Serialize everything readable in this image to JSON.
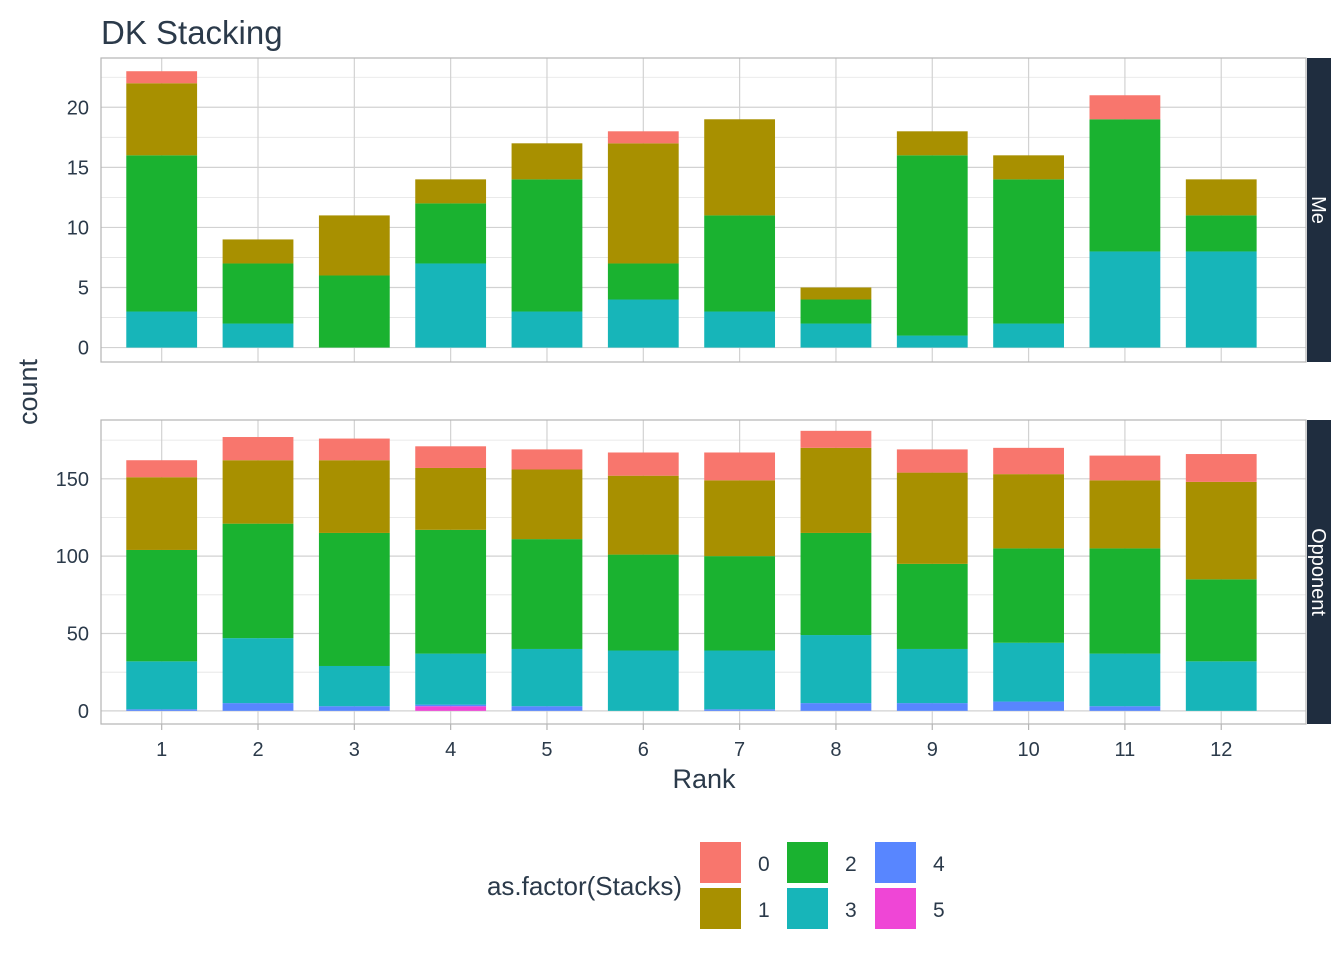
{
  "chart_data": {
    "type": "bar",
    "stacked": true,
    "title": "DK Stacking",
    "xlabel": "Rank",
    "ylabel": "count",
    "grid": true,
    "x": [
      1,
      2,
      3,
      4,
      5,
      6,
      7,
      8,
      9,
      10,
      11,
      12
    ],
    "legend": {
      "title": "as.factor(Stacks)",
      "position": "bottom",
      "entries": [
        "0",
        "1",
        "2",
        "3",
        "4",
        "5"
      ]
    },
    "colors": {
      "0": "#F8766D",
      "1": "#A89000",
      "2": "#1AB230",
      "3": "#17B5B9",
      "4": "#5886FF",
      "5": "#EF46D6"
    },
    "panels": [
      {
        "strip": "Me",
        "ylim": [
          -1.2,
          24.1
        ],
        "yticks": [
          0,
          5,
          10,
          15,
          20
        ],
        "series": [
          {
            "name": "0",
            "values": [
              1,
              0,
              0,
              0,
              0,
              1,
              0,
              0,
              0,
              0,
              2,
              0
            ]
          },
          {
            "name": "1",
            "values": [
              6,
              2,
              5,
              2,
              3,
              10,
              8,
              1,
              2,
              2,
              0,
              3
            ]
          },
          {
            "name": "2",
            "values": [
              13,
              5,
              6,
              5,
              11,
              3,
              8,
              2,
              15,
              12,
              11,
              3
            ]
          },
          {
            "name": "3",
            "values": [
              3,
              2,
              0,
              7,
              3,
              4,
              3,
              2,
              1,
              2,
              8,
              8
            ]
          },
          {
            "name": "4",
            "values": [
              0,
              0,
              0,
              0,
              0,
              0,
              0,
              0,
              0,
              0,
              0,
              0
            ]
          },
          {
            "name": "5",
            "values": [
              0,
              0,
              0,
              0,
              0,
              0,
              0,
              0,
              0,
              0,
              0,
              0
            ]
          }
        ]
      },
      {
        "strip": "Opponent",
        "ylim": [
          -8.5,
          188
        ],
        "yticks": [
          0,
          50,
          100,
          150
        ],
        "series": [
          {
            "name": "0",
            "values": [
              11,
              15,
              14,
              14,
              13,
              15,
              18,
              11,
              15,
              17,
              16,
              18
            ]
          },
          {
            "name": "1",
            "values": [
              47,
              41,
              47,
              40,
              45,
              51,
              49,
              55,
              59,
              48,
              44,
              63
            ]
          },
          {
            "name": "2",
            "values": [
              72,
              74,
              86,
              80,
              71,
              62,
              61,
              66,
              55,
              61,
              68,
              53
            ]
          },
          {
            "name": "3",
            "values": [
              31,
              42,
              26,
              33,
              37,
              39,
              38,
              44,
              35,
              38,
              34,
              32
            ]
          },
          {
            "name": "4",
            "values": [
              1,
              5,
              3,
              1,
              3,
              0,
              1,
              5,
              5,
              6,
              3,
              0
            ]
          },
          {
            "name": "5",
            "values": [
              0,
              0,
              0,
              3,
              0,
              0,
              0,
              0,
              0,
              0,
              0,
              0
            ]
          }
        ]
      }
    ]
  }
}
